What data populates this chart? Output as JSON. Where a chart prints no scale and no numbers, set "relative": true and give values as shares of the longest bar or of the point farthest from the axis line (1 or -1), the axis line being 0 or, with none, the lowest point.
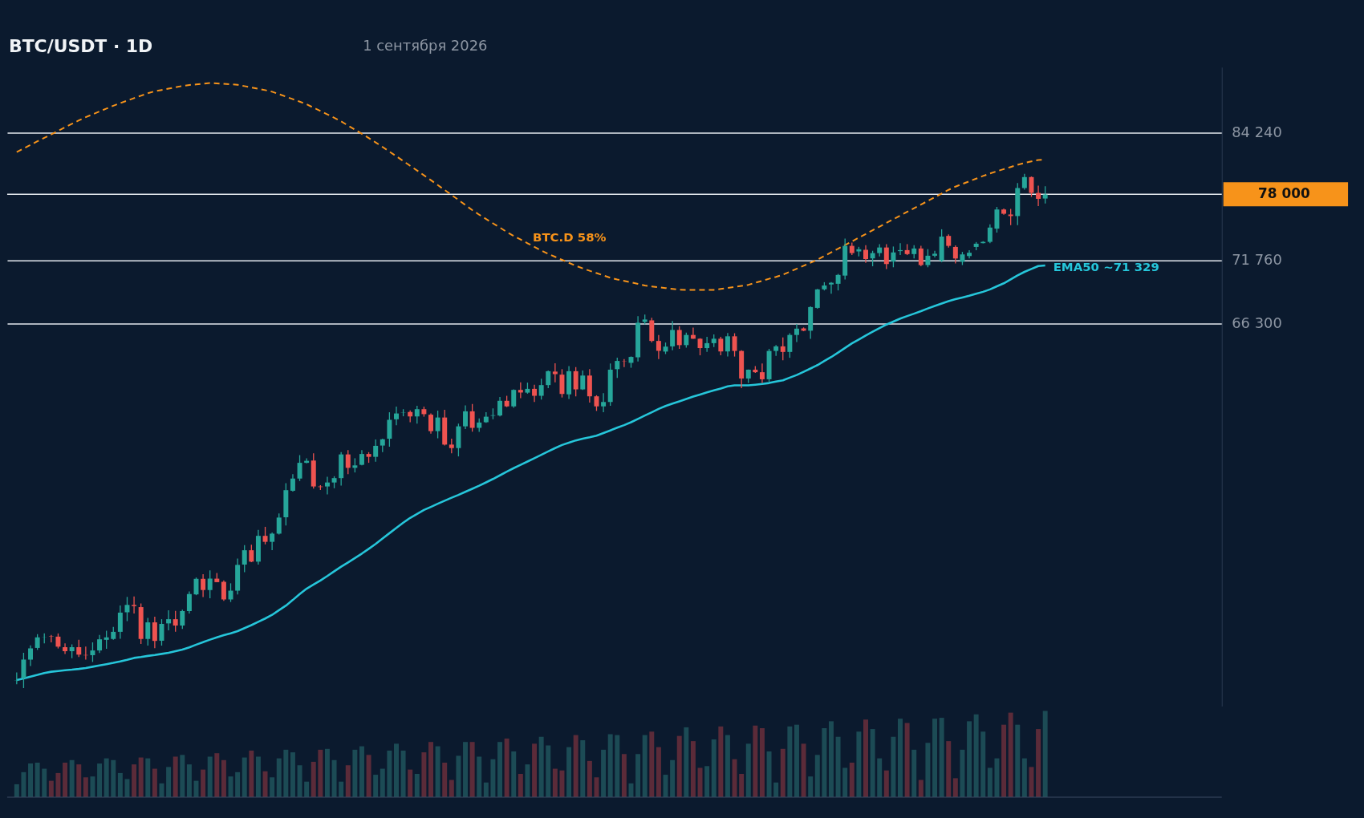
{
  "chart_data": [
    {
      "type": "candlestick",
      "title": "BTC/USDT · 1D",
      "subtitle": "1 сентября 2026",
      "categories": [
        null,
        null,
        null,
        null,
        null,
        null,
        null,
        null,
        null,
        null,
        null,
        null,
        null,
        null,
        null,
        null,
        null,
        null,
        null,
        null,
        null,
        null,
        null,
        null,
        null,
        null,
        null,
        null,
        null,
        null,
        null,
        null,
        null,
        null,
        null,
        null,
        null,
        null,
        null,
        null,
        null,
        null,
        null,
        null,
        null,
        null,
        null,
        null,
        null,
        null,
        null,
        null,
        null,
        null,
        null,
        null,
        null,
        null,
        null,
        null,
        null,
        null,
        null,
        null,
        null,
        null,
        null,
        null,
        null,
        null,
        null,
        null,
        null,
        null,
        null,
        null,
        null,
        null,
        null,
        null,
        null,
        null,
        null,
        null,
        null,
        null,
        null,
        null,
        null,
        null,
        null,
        null,
        null,
        null,
        null,
        null,
        null,
        null,
        null,
        null,
        null,
        null,
        null,
        null,
        null,
        null,
        null,
        null,
        null,
        null,
        null,
        null,
        null,
        null,
        null,
        null,
        null,
        null,
        null,
        null,
        null,
        null,
        null,
        null,
        null,
        null,
        null,
        null,
        null,
        null,
        null,
        null,
        null,
        null,
        null,
        null,
        null,
        null,
        null,
        null,
        null,
        null,
        null,
        null,
        null,
        null,
        null,
        null,
        null,
        null
      ],
      "ohlc": [
        [
          42330,
          42770,
          42140,
          42340
        ],
        [
          42470,
          43840,
          41940,
          43470
        ],
        [
          43470,
          44250,
          43120,
          44080
        ],
        [
          44110,
          44880,
          44000,
          44700
        ],
        [
          44690,
          44930,
          44360,
          44700
        ],
        [
          44760,
          44840,
          44420,
          44740
        ],
        [
          44740,
          44920,
          44080,
          44180
        ],
        [
          44150,
          44360,
          43780,
          43930
        ],
        [
          43930,
          44310,
          43540,
          44150
        ],
        [
          44150,
          44560,
          43610,
          43740
        ],
        [
          43720,
          44190,
          43470,
          43700
        ],
        [
          43710,
          44420,
          43340,
          43970
        ],
        [
          43970,
          44840,
          43830,
          44590
        ],
        [
          44560,
          45070,
          44060,
          44700
        ],
        [
          44610,
          45290,
          44560,
          45010
        ],
        [
          45010,
          46530,
          44620,
          46110
        ],
        [
          46130,
          47030,
          45620,
          46560
        ],
        [
          46560,
          47060,
          46060,
          46490
        ],
        [
          46430,
          46640,
          44330,
          44610
        ],
        [
          44610,
          45810,
          44240,
          45550
        ],
        [
          45550,
          45870,
          44100,
          44500
        ],
        [
          44510,
          45730,
          44240,
          45460
        ],
        [
          45490,
          46240,
          45090,
          45730
        ],
        [
          45730,
          46210,
          45020,
          45370
        ],
        [
          45370,
          46280,
          45180,
          46200
        ],
        [
          46200,
          47350,
          46060,
          47200
        ],
        [
          47180,
          48190,
          47130,
          48110
        ],
        [
          48110,
          48390,
          47020,
          47440
        ],
        [
          47440,
          48620,
          46950,
          48120
        ],
        [
          48120,
          48470,
          47900,
          47910
        ],
        [
          47930,
          48010,
          46800,
          46880
        ],
        [
          46880,
          47840,
          46730,
          47400
        ],
        [
          47400,
          49350,
          47180,
          48960
        ],
        [
          48980,
          50190,
          48510,
          49870
        ],
        [
          49870,
          50220,
          49130,
          49160
        ],
        [
          49160,
          51160,
          48980,
          50780
        ],
        [
          50780,
          51360,
          50240,
          50400
        ],
        [
          50400,
          51000,
          49870,
          50920
        ],
        [
          50920,
          52230,
          50870,
          51960
        ],
        [
          51980,
          54260,
          51440,
          53780
        ],
        [
          53740,
          54870,
          53680,
          54570
        ],
        [
          54570,
          56200,
          54400,
          55660
        ],
        [
          55660,
          55980,
          55620,
          55800
        ],
        [
          55820,
          56330,
          53880,
          54030
        ],
        [
          54030,
          54120,
          53790,
          53990
        ],
        [
          54030,
          54690,
          53490,
          54300
        ],
        [
          54300,
          54730,
          53910,
          54600
        ],
        [
          54600,
          56410,
          54090,
          56250
        ],
        [
          56250,
          56550,
          54870,
          55310
        ],
        [
          55310,
          55980,
          54990,
          55480
        ],
        [
          55520,
          56550,
          55480,
          56280
        ],
        [
          56280,
          56410,
          55660,
          56080
        ],
        [
          56080,
          57310,
          55730,
          56860
        ],
        [
          56880,
          57370,
          56410,
          57330
        ],
        [
          57370,
          59310,
          56800,
          58750
        ],
        [
          58790,
          59730,
          58350,
          59220
        ],
        [
          59290,
          59540,
          59010,
          59310
        ],
        [
          59330,
          59450,
          58570,
          59000
        ],
        [
          59000,
          59790,
          58470,
          59540
        ],
        [
          59540,
          59730,
          58980,
          59170
        ],
        [
          59130,
          59220,
          57730,
          57920
        ],
        [
          57920,
          59430,
          57400,
          58920
        ],
        [
          58920,
          59500,
          56880,
          56950
        ],
        [
          56950,
          57370,
          56330,
          56700
        ],
        [
          56700,
          58470,
          56110,
          58270
        ],
        [
          58270,
          59830,
          58070,
          59380
        ],
        [
          59380,
          59930,
          57880,
          58160
        ],
        [
          58160,
          58850,
          57870,
          58550
        ],
        [
          58570,
          59320,
          58530,
          58980
        ],
        [
          59050,
          59600,
          58790,
          59090
        ],
        [
          59070,
          60460,
          59000,
          60170
        ],
        [
          60170,
          60550,
          59700,
          59750
        ],
        [
          59750,
          61040,
          59640,
          61000
        ],
        [
          61000,
          61580,
          60370,
          60800
        ],
        [
          60790,
          61560,
          60710,
          61080
        ],
        [
          61080,
          61390,
          60080,
          60550
        ],
        [
          60550,
          61860,
          60270,
          61370
        ],
        [
          61370,
          62510,
          61140,
          62450
        ],
        [
          62420,
          63070,
          61580,
          62220
        ],
        [
          62180,
          62610,
          60420,
          60690
        ],
        [
          60660,
          62850,
          60310,
          62450
        ],
        [
          62450,
          62770,
          60500,
          61040
        ],
        [
          61040,
          62510,
          61000,
          62110
        ],
        [
          62110,
          62610,
          60040,
          60510
        ],
        [
          60510,
          60590,
          59410,
          59750
        ],
        [
          59750,
          60750,
          59320,
          60080
        ],
        [
          60080,
          63050,
          59790,
          62570
        ],
        [
          62610,
          63520,
          61920,
          63260
        ],
        [
          63220,
          63410,
          62770,
          63200
        ],
        [
          63110,
          63620,
          62720,
          63580
        ],
        [
          63550,
          66920,
          63220,
          66370
        ],
        [
          66440,
          67060,
          66230,
          66640
        ],
        [
          66570,
          66780,
          64740,
          64870
        ],
        [
          64870,
          65350,
          63410,
          64070
        ],
        [
          64010,
          64740,
          63810,
          64410
        ],
        [
          64430,
          66510,
          64120,
          65770
        ],
        [
          65770,
          66090,
          64230,
          64530
        ],
        [
          64530,
          65560,
          64330,
          65360
        ],
        [
          65360,
          65960,
          65040,
          65050
        ],
        [
          65050,
          65090,
          63710,
          64290
        ],
        [
          64290,
          65210,
          63980,
          64690
        ],
        [
          64690,
          65400,
          64370,
          65050
        ],
        [
          65050,
          65210,
          63710,
          64020
        ],
        [
          64020,
          65520,
          63610,
          65250
        ],
        [
          65250,
          65500,
          63610,
          64060
        ],
        [
          64060,
          64120,
          61130,
          61880
        ],
        [
          61880,
          62580,
          61530,
          62570
        ],
        [
          62570,
          62850,
          62310,
          62370
        ],
        [
          62370,
          63050,
          61530,
          61820
        ],
        [
          61820,
          64230,
          61620,
          64060
        ],
        [
          64060,
          64530,
          63660,
          64430
        ],
        [
          64430,
          65150,
          63310,
          63980
        ],
        [
          63980,
          65500,
          63510,
          65360
        ],
        [
          65360,
          66260,
          64780,
          65880
        ],
        [
          65900,
          65980,
          65670,
          65710
        ],
        [
          65710,
          67750,
          65050,
          67690
        ],
        [
          67620,
          69250,
          67550,
          69210
        ],
        [
          69210,
          69840,
          69120,
          69550
        ],
        [
          69640,
          69850,
          68840,
          69790
        ],
        [
          69700,
          70570,
          69120,
          70480
        ],
        [
          70420,
          73770,
          70070,
          73100
        ],
        [
          73100,
          73410,
          72260,
          72440
        ],
        [
          72590,
          73010,
          72140,
          72790
        ],
        [
          72740,
          73170,
          71550,
          71900
        ],
        [
          71960,
          72650,
          71250,
          72440
        ],
        [
          72440,
          73260,
          72140,
          72950
        ],
        [
          72950,
          73260,
          71010,
          71450
        ],
        [
          71670,
          73040,
          71160,
          72500
        ],
        [
          72620,
          73350,
          72260,
          72710
        ],
        [
          72710,
          73260,
          72260,
          72350
        ],
        [
          72350,
          73170,
          71960,
          72860
        ],
        [
          72860,
          73100,
          71250,
          71360
        ],
        [
          71360,
          72800,
          71160,
          72200
        ],
        [
          72200,
          72650,
          72050,
          72380
        ],
        [
          71760,
          74640,
          71610,
          73960
        ],
        [
          74020,
          74170,
          72950,
          73100
        ],
        [
          73000,
          73150,
          71500,
          71950
        ],
        [
          71650,
          72550,
          71360,
          72320
        ],
        [
          72170,
          72700,
          71950,
          72470
        ],
        [
          73000,
          73450,
          72700,
          73300
        ],
        [
          73350,
          73530,
          73320,
          73470
        ],
        [
          73470,
          75110,
          73340,
          74800
        ],
        [
          74700,
          76770,
          74330,
          76520
        ],
        [
          76520,
          76620,
          76010,
          76110
        ],
        [
          76040,
          76580,
          75020,
          75890
        ],
        [
          75890,
          79110,
          75020,
          78610
        ],
        [
          78610,
          80030,
          78450,
          79700
        ],
        [
          79700,
          79760,
          77740,
          78130
        ],
        [
          78130,
          78840,
          76840,
          77550
        ],
        [
          77580,
          78780,
          77090,
          77970
        ]
      ],
      "colors": [
        "#26a69a",
        "#26a69a",
        "#26a69a",
        "#26a69a",
        "#26a69a",
        "#ef5350",
        "#ef5350",
        "#ef5350",
        "#26a69a",
        "#ef5350",
        "#ef5350",
        "#26a69a",
        "#26a69a",
        "#26a69a",
        "#26a69a",
        "#26a69a",
        "#26a69a",
        "#ef5350",
        "#ef5350",
        "#26a69a",
        "#ef5350",
        "#26a69a",
        "#26a69a",
        "#ef5350",
        "#26a69a",
        "#26a69a",
        "#26a69a",
        "#ef5350",
        "#26a69a",
        "#ef5350",
        "#ef5350",
        "#26a69a",
        "#26a69a",
        "#26a69a",
        "#ef5350",
        "#26a69a",
        "#ef5350",
        "#26a69a",
        "#26a69a",
        "#26a69a",
        "#26a69a",
        "#26a69a",
        "#26a69a",
        "#ef5350",
        "#ef5350",
        "#26a69a",
        "#26a69a",
        "#26a69a",
        "#ef5350",
        "#26a69a",
        "#26a69a",
        "#ef5350",
        "#26a69a",
        "#26a69a",
        "#26a69a",
        "#26a69a",
        "#26a69a",
        "#ef5350",
        "#26a69a",
        "#ef5350",
        "#ef5350",
        "#26a69a",
        "#ef5350",
        "#ef5350",
        "#26a69a",
        "#26a69a",
        "#ef5350",
        "#26a69a",
        "#26a69a",
        "#26a69a",
        "#26a69a",
        "#ef5350",
        "#26a69a",
        "#ef5350",
        "#26a69a",
        "#ef5350",
        "#26a69a",
        "#26a69a",
        "#ef5350",
        "#ef5350",
        "#26a69a",
        "#ef5350",
        "#26a69a",
        "#ef5350",
        "#ef5350",
        "#26a69a",
        "#26a69a",
        "#26a69a",
        "#ef5350",
        "#26a69a",
        "#26a69a",
        "#26a69a",
        "#ef5350",
        "#ef5350",
        "#26a69a",
        "#26a69a",
        "#ef5350",
        "#26a69a",
        "#ef5350",
        "#ef5350",
        "#26a69a",
        "#26a69a",
        "#ef5350",
        "#26a69a",
        "#ef5350",
        "#ef5350",
        "#26a69a",
        "#ef5350",
        "#ef5350",
        "#26a69a",
        "#26a69a",
        "#ef5350",
        "#26a69a",
        "#26a69a",
        "#ef5350",
        "#26a69a",
        "#26a69a",
        "#26a69a",
        "#26a69a",
        "#26a69a",
        "#26a69a",
        "#ef5350",
        "#26a69a",
        "#ef5350",
        "#26a69a",
        "#26a69a",
        "#ef5350",
        "#26a69a",
        "#26a69a",
        "#ef5350",
        "#26a69a",
        "#ef5350",
        "#26a69a",
        "#26a69a",
        "#26a69a",
        "#ef5350",
        "#ef5350",
        "#26a69a",
        "#26a69a",
        "#26a69a",
        "#26a69a",
        "#26a69a",
        "#26a69a",
        "#ef5350",
        "#ef5350",
        "#26a69a",
        "#26a69a",
        "#ef5350",
        "#ef5350",
        "#26a69a"
      ],
      "series": [
        {
          "name": "EMA50 ~71 329",
          "type": "line",
          "color": "#26c6da",
          "line_style": "solid",
          "values": [
            42360,
            42450,
            42550,
            42640,
            42740,
            42810,
            42850,
            42890,
            42920,
            42960,
            43010,
            43080,
            43150,
            43220,
            43290,
            43370,
            43460,
            43560,
            43610,
            43670,
            43720,
            43780,
            43840,
            43930,
            44020,
            44140,
            44290,
            44430,
            44570,
            44700,
            44820,
            44930,
            45050,
            45220,
            45390,
            45580,
            45770,
            45980,
            46250,
            46520,
            46850,
            47200,
            47520,
            47770,
            48010,
            48280,
            48570,
            48850,
            49110,
            49380,
            49660,
            49960,
            50270,
            50610,
            50950,
            51290,
            51630,
            51940,
            52200,
            52460,
            52660,
            52870,
            53070,
            53270,
            53460,
            53670,
            53870,
            54080,
            54310,
            54540,
            54790,
            55050,
            55290,
            55520,
            55750,
            55980,
            56220,
            56460,
            56700,
            56920,
            57080,
            57250,
            57370,
            57470,
            57590,
            57780,
            57970,
            58170,
            58360,
            58570,
            58820,
            59070,
            59310,
            59560,
            59780,
            59960,
            60130,
            60310,
            60490,
            60650,
            60810,
            60960,
            61110,
            61270,
            61350,
            61350,
            61350,
            61400,
            61460,
            61530,
            61640,
            61740,
            61950,
            62150,
            62400,
            62660,
            62930,
            63250,
            63570,
            63930,
            64300,
            64670,
            64990,
            65320,
            65630,
            65930,
            66220,
            66470,
            66720,
            66930,
            67130,
            67340,
            67570,
            67790,
            67990,
            68190,
            68370,
            68510,
            68660,
            68830,
            69000,
            69210,
            69480,
            69740,
            70090,
            70440,
            70750,
            71010,
            71270,
            71330
          ]
        },
        {
          "name": "BTC.D 58%",
          "type": "line",
          "color": "#f7931a",
          "line_style": "dashed",
          "values": [
            82250,
            82620,
            82990,
            83360,
            83720,
            84090,
            84470,
            84840,
            85210,
            85580,
            85930,
            86240,
            86550,
            86860,
            87170,
            87460,
            87730,
            88010,
            88280,
            88560,
            88770,
            88920,
            89070,
            89220,
            89370,
            89470,
            89540,
            89620,
            89690,
            89660,
            89610,
            89560,
            89500,
            89350,
            89200,
            89050,
            88900,
            88720,
            88450,
            88170,
            87900,
            87620,
            87330,
            86960,
            86600,
            86230,
            85870,
            85480,
            85030,
            84600,
            84150,
            83710,
            83250,
            82770,
            82290,
            81810,
            81320,
            80840,
            80360,
            79870,
            79390,
            78900,
            78420,
            77930,
            77440,
            76950,
            76460,
            76020,
            75610,
            75200,
            74800,
            74390,
            74020,
            73680,
            73340,
            73010,
            72670,
            72370,
            72100,
            71830,
            71560,
            71290,
            71060,
            70850,
            70640,
            70440,
            70230,
            70080,
            69950,
            69820,
            69690,
            69550,
            69470,
            69400,
            69330,
            69250,
            69180,
            69170,
            69170,
            69170,
            69170,
            69170,
            69250,
            69340,
            69430,
            69520,
            69610,
            69790,
            69960,
            70140,
            70310,
            70500,
            70760,
            71030,
            71300,
            71570,
            71840,
            72180,
            72510,
            72840,
            73180,
            73510,
            73860,
            74200,
            74550,
            74890,
            75240,
            75590,
            75940,
            76290,
            76640,
            76990,
            77350,
            77710,
            78070,
            78430,
            78750,
            79010,
            79280,
            79540,
            79810,
            80060,
            80280,
            80500,
            80720,
            80940,
            81130,
            81280,
            81430,
            81470
          ]
        }
      ],
      "log": true,
      "ylim": [
        41000,
        91500
      ],
      "yticks": [
        {
          "value": 84240,
          "label": "84 240"
        },
        {
          "value": 71760,
          "label": "71 760"
        },
        {
          "value": 66300,
          "label": "66 300"
        }
      ],
      "grid": "y",
      "ref_lines": [
        {
          "axis": "y",
          "value": 78000,
          "label": "78 000",
          "color": "#e6eaef"
        }
      ]
    },
    {
      "type": "bar",
      "relative": true,
      "categories": [
        null,
        null,
        null,
        null,
        null,
        null,
        null,
        null,
        null,
        null,
        null,
        null,
        null,
        null,
        null,
        null,
        null,
        null,
        null,
        null,
        null,
        null,
        null,
        null,
        null,
        null,
        null,
        null,
        null,
        null,
        null,
        null,
        null,
        null,
        null,
        null,
        null,
        null,
        null,
        null,
        null,
        null,
        null,
        null,
        null,
        null,
        null,
        null,
        null,
        null,
        null,
        null,
        null,
        null,
        null,
        null,
        null,
        null,
        null,
        null,
        null,
        null,
        null,
        null,
        null,
        null,
        null,
        null,
        null,
        null,
        null,
        null,
        null,
        null,
        null,
        null,
        null,
        null,
        null,
        null,
        null,
        null,
        null,
        null,
        null,
        null,
        null,
        null,
        null,
        null,
        null,
        null,
        null,
        null,
        null,
        null,
        null,
        null,
        null,
        null,
        null,
        null,
        null,
        null,
        null,
        null,
        null,
        null,
        null,
        null,
        null,
        null,
        null,
        null,
        null,
        null,
        null,
        null,
        null,
        null,
        null,
        null,
        null,
        null,
        null,
        null,
        null,
        null,
        null,
        null,
        null,
        null,
        null,
        null,
        null,
        null,
        null,
        null,
        null,
        null,
        null,
        null,
        null,
        null,
        null,
        null,
        null,
        null,
        null,
        null
      ],
      "values": [
        0.15,
        0.29,
        0.39,
        0.4,
        0.33,
        0.19,
        0.28,
        0.4,
        0.43,
        0.38,
        0.23,
        0.24,
        0.39,
        0.45,
        0.43,
        0.28,
        0.21,
        0.38,
        0.46,
        0.45,
        0.33,
        0.16,
        0.35,
        0.47,
        0.49,
        0.38,
        0.19,
        0.32,
        0.47,
        0.51,
        0.43,
        0.24,
        0.29,
        0.46,
        0.54,
        0.47,
        0.3,
        0.23,
        0.45,
        0.55,
        0.52,
        0.37,
        0.18,
        0.41,
        0.55,
        0.56,
        0.43,
        0.18,
        0.37,
        0.55,
        0.59,
        0.49,
        0.26,
        0.33,
        0.54,
        0.62,
        0.54,
        0.32,
        0.27,
        0.52,
        0.64,
        0.59,
        0.4,
        0.2,
        0.48,
        0.64,
        0.64,
        0.47,
        0.17,
        0.44,
        0.64,
        0.68,
        0.53,
        0.27,
        0.38,
        0.62,
        0.7,
        0.6,
        0.33,
        0.31,
        0.58,
        0.72,
        0.66,
        0.42,
        0.23,
        0.55,
        0.73,
        0.72,
        0.5,
        0.16,
        0.5,
        0.72,
        0.76,
        0.58,
        0.26,
        0.43,
        0.71,
        0.81,
        0.65,
        0.34,
        0.36,
        0.67,
        0.82,
        0.72,
        0.44,
        0.27,
        0.62,
        0.83,
        0.8,
        0.53,
        0.17,
        0.56,
        0.82,
        0.84,
        0.62,
        0.24,
        0.49,
        0.8,
        0.88,
        0.7,
        0.34,
        0.4,
        0.76,
        0.9,
        0.79,
        0.45,
        0.31,
        0.7,
        0.91,
        0.86,
        0.55,
        0.2,
        0.63,
        0.91,
        0.92,
        0.65,
        0.22,
        0.55,
        0.88,
        0.96,
        0.76,
        0.34,
        0.45,
        0.84,
        0.98,
        0.84,
        0.45,
        0.35,
        0.79,
        1
      ],
      "colors": [
        "#1c4b55",
        "#1c4b55",
        "#1c4b55",
        "#1c4b55",
        "#1c4b55",
        "#5b2b39",
        "#5b2b39",
        "#5b2b39",
        "#1c4b55",
        "#5b2b39",
        "#5b2b39",
        "#1c4b55",
        "#1c4b55",
        "#1c4b55",
        "#1c4b55",
        "#1c4b55",
        "#1c4b55",
        "#5b2b39",
        "#5b2b39",
        "#1c4b55",
        "#5b2b39",
        "#1c4b55",
        "#1c4b55",
        "#5b2b39",
        "#1c4b55",
        "#1c4b55",
        "#1c4b55",
        "#5b2b39",
        "#1c4b55",
        "#5b2b39",
        "#5b2b39",
        "#1c4b55",
        "#1c4b55",
        "#1c4b55",
        "#5b2b39",
        "#1c4b55",
        "#5b2b39",
        "#1c4b55",
        "#1c4b55",
        "#1c4b55",
        "#1c4b55",
        "#1c4b55",
        "#1c4b55",
        "#5b2b39",
        "#5b2b39",
        "#1c4b55",
        "#1c4b55",
        "#1c4b55",
        "#5b2b39",
        "#1c4b55",
        "#1c4b55",
        "#5b2b39",
        "#1c4b55",
        "#1c4b55",
        "#1c4b55",
        "#1c4b55",
        "#1c4b55",
        "#5b2b39",
        "#1c4b55",
        "#5b2b39",
        "#5b2b39",
        "#1c4b55",
        "#5b2b39",
        "#5b2b39",
        "#1c4b55",
        "#1c4b55",
        "#5b2b39",
        "#1c4b55",
        "#1c4b55",
        "#1c4b55",
        "#1c4b55",
        "#5b2b39",
        "#1c4b55",
        "#5b2b39",
        "#1c4b55",
        "#5b2b39",
        "#1c4b55",
        "#1c4b55",
        "#5b2b39",
        "#5b2b39",
        "#1c4b55",
        "#5b2b39",
        "#1c4b55",
        "#5b2b39",
        "#5b2b39",
        "#1c4b55",
        "#1c4b55",
        "#1c4b55",
        "#5b2b39",
        "#1c4b55",
        "#1c4b55",
        "#1c4b55",
        "#5b2b39",
        "#5b2b39",
        "#1c4b55",
        "#1c4b55",
        "#5b2b39",
        "#1c4b55",
        "#5b2b39",
        "#5b2b39",
        "#1c4b55",
        "#1c4b55",
        "#5b2b39",
        "#1c4b55",
        "#5b2b39",
        "#5b2b39",
        "#1c4b55",
        "#5b2b39",
        "#5b2b39",
        "#1c4b55",
        "#1c4b55",
        "#5b2b39",
        "#1c4b55",
        "#1c4b55",
        "#5b2b39",
        "#1c4b55",
        "#1c4b55",
        "#1c4b55",
        "#1c4b55",
        "#1c4b55",
        "#1c4b55",
        "#5b2b39",
        "#1c4b55",
        "#5b2b39",
        "#1c4b55",
        "#1c4b55",
        "#5b2b39",
        "#1c4b55",
        "#1c4b55",
        "#5b2b39",
        "#1c4b55",
        "#5b2b39",
        "#1c4b55",
        "#1c4b55",
        "#1c4b55",
        "#5b2b39",
        "#5b2b39",
        "#1c4b55",
        "#1c4b55",
        "#1c4b55",
        "#1c4b55",
        "#1c4b55",
        "#1c4b55",
        "#5b2b39",
        "#5b2b39",
        "#1c4b55",
        "#1c4b55",
        "#5b2b39",
        "#5b2b39",
        "#1c4b55"
      ]
    }
  ]
}
